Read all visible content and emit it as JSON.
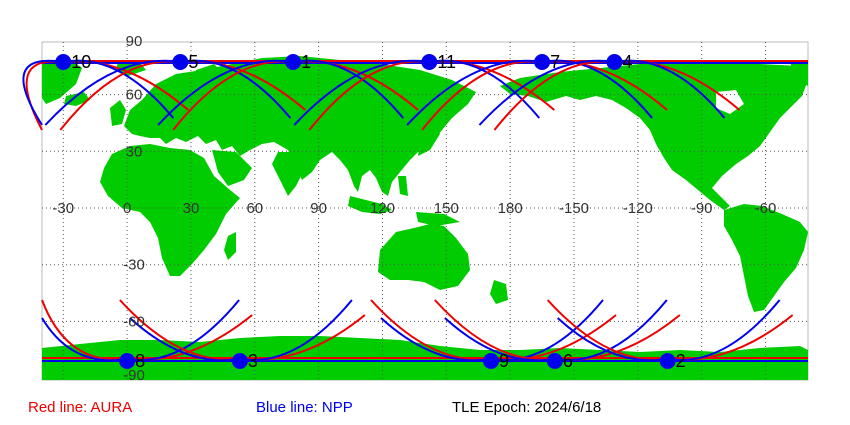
{
  "map": {
    "lat_labels": [
      "90",
      "60",
      "30",
      "0",
      "-30",
      "-60",
      "-90"
    ],
    "lon_labels": [
      "-30",
      "0",
      "30",
      "60",
      "90",
      "120",
      "150",
      "180",
      "-150",
      "-120",
      "-90",
      "-60"
    ],
    "ocean_color": "#ffffff",
    "land_color": "#00cc00",
    "grid": "dotted",
    "satellites": {
      "north": [
        {
          "label": "10",
          "lon": -30,
          "lat": 87
        },
        {
          "label": "5",
          "lon": 25,
          "lat": 87
        },
        {
          "label": "1",
          "lon": 78,
          "lat": 87
        },
        {
          "label": "11",
          "lon": 142,
          "lat": 87
        },
        {
          "label": "7",
          "lon": -165,
          "lat": 87
        },
        {
          "label": "4",
          "lon": -131,
          "lat": 87
        }
      ],
      "south": [
        {
          "label": "8",
          "lon": 0,
          "lat": -86
        },
        {
          "label": "3",
          "lon": 53,
          "lat": -86
        },
        {
          "label": "9",
          "lon": 171,
          "lat": -86
        },
        {
          "label": "6",
          "lon": -159,
          "lat": -86
        },
        {
          "label": "2",
          "lon": -106,
          "lat": -86
        }
      ]
    },
    "marker_color": "#0000ee"
  },
  "legend": {
    "red_label": "Red line: AURA",
    "red_color": "#ee0000",
    "blue_label": "Blue line: NPP",
    "blue_color": "#0000ee",
    "epoch_label": "TLE Epoch: 2024/6/18"
  }
}
